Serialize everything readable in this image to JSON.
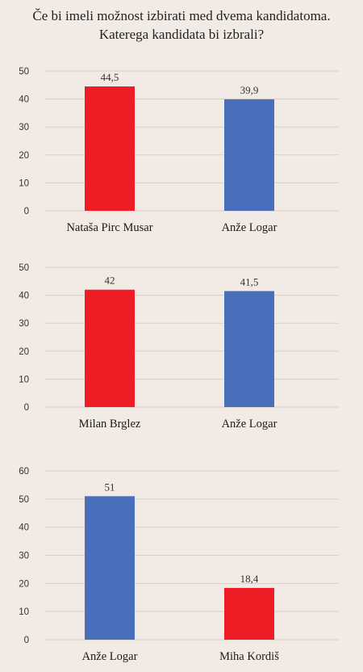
{
  "title": {
    "line1": "Če bi imeli možnost izbirati med dvema kandidatoma.",
    "line2": "Katerega kandidata bi izbrali?"
  },
  "colors": {
    "red": "#ee1c25",
    "blue": "#4a6fba",
    "grid": "#d6cfc8",
    "background": "#f2ebe5"
  },
  "chart_data": [
    {
      "type": "bar",
      "categories": [
        "Nataša Pirc Musar",
        "Anže Logar"
      ],
      "values": [
        44.5,
        39.9
      ],
      "value_labels": [
        "44,5",
        "39,9"
      ],
      "bar_colors": [
        "#ee1c25",
        "#4a6fba"
      ],
      "ylim": [
        0,
        50
      ],
      "yticks": [
        0,
        10,
        20,
        30,
        40,
        50
      ],
      "grid": true
    },
    {
      "type": "bar",
      "categories": [
        "Milan Brglez",
        "Anže Logar"
      ],
      "values": [
        42,
        41.5
      ],
      "value_labels": [
        "42",
        "41,5"
      ],
      "bar_colors": [
        "#ee1c25",
        "#4a6fba"
      ],
      "ylim": [
        0,
        50
      ],
      "yticks": [
        0,
        10,
        20,
        30,
        40,
        50
      ],
      "grid": true
    },
    {
      "type": "bar",
      "categories": [
        "Anže Logar",
        "Miha Kordiš"
      ],
      "values": [
        51,
        18.4
      ],
      "value_labels": [
        "51",
        "18,4"
      ],
      "bar_colors": [
        "#4a6fba",
        "#ee1c25"
      ],
      "ylim": [
        0,
        60
      ],
      "yticks": [
        0,
        10,
        20,
        30,
        40,
        50,
        60
      ],
      "grid": true
    }
  ]
}
